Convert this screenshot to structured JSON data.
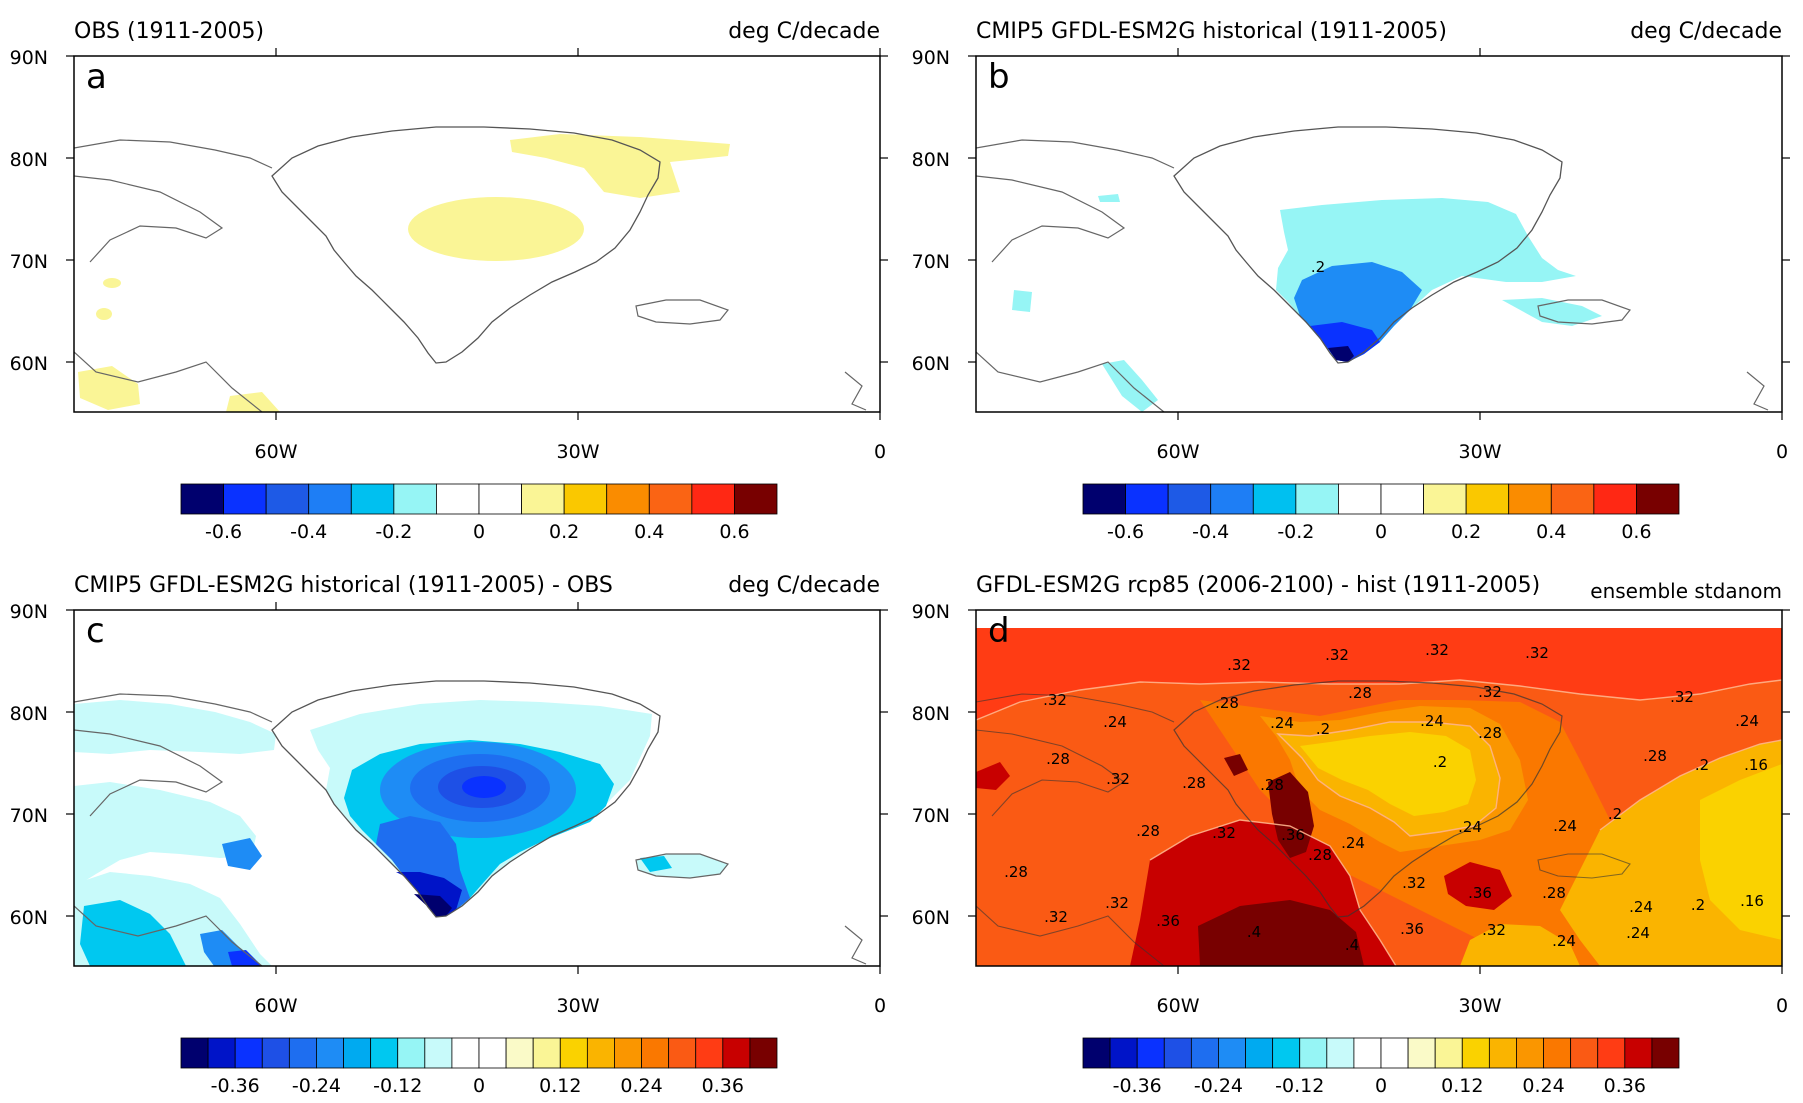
{
  "panels": [
    {
      "id": "a",
      "letter": "a",
      "title": "OBS (1911-2005)",
      "units": "deg C/decade",
      "lat_labels": [
        "90N",
        "80N",
        "70N",
        "60N"
      ],
      "lon_labels": [
        "60W",
        "30W",
        "0"
      ],
      "colorbar": {
        "colors": [
          "#00006e",
          "#0a32ff",
          "#1e5ae6",
          "#1e7ef5",
          "#00c0f0",
          "#96f5f5",
          "#ffffff",
          "#ffffff",
          "#faf596",
          "#fac800",
          "#fa8c00",
          "#fa6414",
          "#ff2814",
          "#780000"
        ],
        "tick_labels": [
          "-0.6",
          "-0.4",
          "-0.2",
          "0",
          "0.2",
          "0.4",
          "0.6"
        ]
      },
      "contour_labels": []
    },
    {
      "id": "b",
      "letter": "b",
      "title": "CMIP5 GFDL-ESM2G historical (1911-2005)",
      "units": "deg C/decade",
      "lat_labels": [
        "90N",
        "80N",
        "70N",
        "60N"
      ],
      "lon_labels": [
        "60W",
        "30W",
        "0"
      ],
      "colorbar": {
        "colors": [
          "#00006e",
          "#0a32ff",
          "#1e5ae6",
          "#1e7ef5",
          "#00c0f0",
          "#96f5f5",
          "#ffffff",
          "#ffffff",
          "#faf596",
          "#fac800",
          "#fa8c00",
          "#fa6414",
          "#ff2814",
          "#780000"
        ],
        "tick_labels": [
          "-0.6",
          "-0.4",
          "-0.2",
          "0",
          "0.2",
          "0.4",
          "0.6"
        ]
      },
      "contour_labels": [
        ".2"
      ]
    },
    {
      "id": "c",
      "letter": "c",
      "title": "CMIP5 GFDL-ESM2G historical (1911-2005) - OBS",
      "units": "deg C/decade",
      "lat_labels": [
        "90N",
        "80N",
        "70N",
        "60N"
      ],
      "lon_labels": [
        "60W",
        "30W",
        "0"
      ],
      "colorbar": {
        "colors": [
          "#00006e",
          "#0014c8",
          "#0a32ff",
          "#1e50e6",
          "#1e6ef0",
          "#1e8cf5",
          "#00aaf0",
          "#00c8f0",
          "#96f5f5",
          "#c8fafa",
          "#ffffff",
          "#ffffff",
          "#fafac8",
          "#faf596",
          "#fad200",
          "#fab400",
          "#fa9600",
          "#fa7800",
          "#fa5a14",
          "#ff3c14",
          "#c80000",
          "#780000"
        ],
        "tick_labels": [
          "-0.36",
          "-0.24",
          "-0.12",
          "0",
          "0.12",
          "0.24",
          "0.36"
        ]
      },
      "contour_labels": []
    },
    {
      "id": "d",
      "letter": "d",
      "title": "GFDL-ESM2G rcp85 (2006-2100) - hist (1911-2005)",
      "units": "ensemble stdanom",
      "lat_labels": [
        "90N",
        "80N",
        "70N",
        "60N"
      ],
      "lon_labels": [
        "60W",
        "30W",
        "0"
      ],
      "colorbar": {
        "colors": [
          "#00006e",
          "#0014c8",
          "#0a32ff",
          "#1e50e6",
          "#1e6ef0",
          "#1e8cf5",
          "#00aaf0",
          "#00c8f0",
          "#96f5f5",
          "#c8fafa",
          "#ffffff",
          "#ffffff",
          "#fafac8",
          "#faf596",
          "#fad200",
          "#fab400",
          "#fa9600",
          "#fa7800",
          "#fa5a14",
          "#ff3c14",
          "#c80000",
          "#780000"
        ],
        "tick_labels": [
          "-0.36",
          "-0.24",
          "-0.12",
          "0",
          "0.12",
          "0.24",
          "0.36"
        ]
      },
      "contour_labels": [
        ".32",
        ".32",
        ".32",
        ".32",
        ".32",
        ".28",
        ".28",
        ".32",
        ".32",
        ".24",
        ".24",
        ".2",
        ".24",
        ".28",
        ".24",
        ".28",
        ".2",
        ".2",
        ".16",
        ".28",
        ".32",
        ".28",
        ".28",
        ".2",
        ".28",
        ".32",
        ".36",
        ".24",
        ".24",
        ".24",
        ".28",
        ".28",
        ".32",
        ".36",
        ".28",
        ".24",
        ".2",
        ".16",
        ".32",
        ".32",
        ".36",
        ".4",
        ".4",
        ".36",
        ".32",
        ".24",
        ".24"
      ]
    }
  ]
}
